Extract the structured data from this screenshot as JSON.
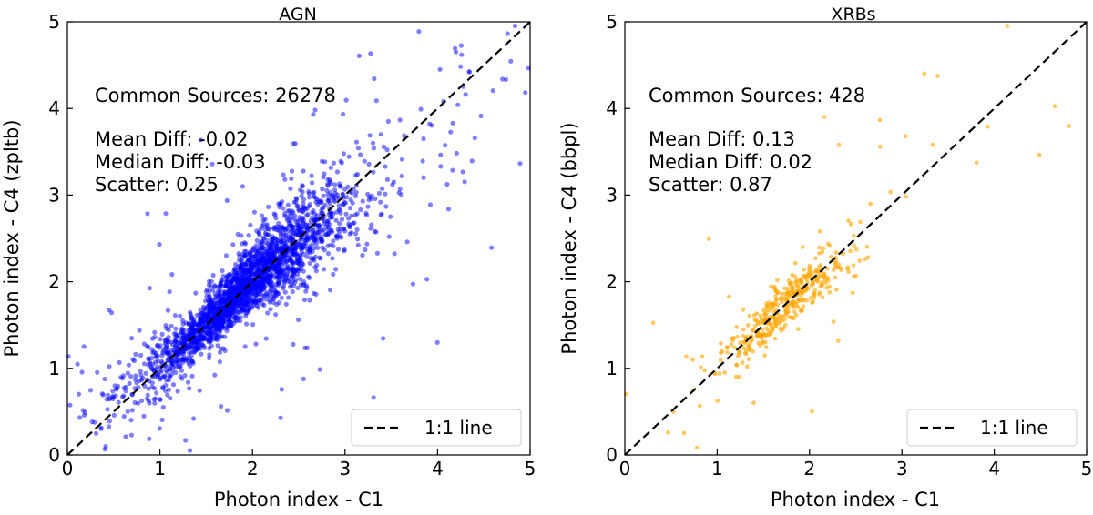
{
  "chart_data": [
    {
      "type": "scatter",
      "title": "AGN",
      "xlabel": "Photon index - C1",
      "ylabel": "Photon index - C4 (zpltb)",
      "xlim": [
        0,
        5
      ],
      "ylim": [
        0,
        5
      ],
      "xticks": [
        "0",
        "1",
        "2",
        "3",
        "4",
        "5"
      ],
      "yticks": [
        "0",
        "1",
        "2",
        "3",
        "4",
        "5"
      ],
      "point_color": "#0000ff",
      "point_count_rendered": 2600,
      "seed": 7,
      "distribution": {
        "center": 1.95,
        "spread": 0.55,
        "scatter": 0.22,
        "outlier_fraction": 0.08
      },
      "annotations": {
        "common_sources": "Common Sources: 26278",
        "mean_diff": "Mean Diff: -0.02",
        "median_diff": "Median Diff: -0.03",
        "scatter": "Scatter: 0.25"
      },
      "reference_line": {
        "x": [
          0,
          5
        ],
        "y": [
          0,
          5
        ]
      },
      "legend": {
        "label": "1:1 line",
        "placement": "lower-right"
      }
    },
    {
      "type": "scatter",
      "title": "XRBs",
      "xlabel": "Photon index - C1",
      "ylabel": "Photon index - C4 (bbpl)",
      "xlim": [
        0,
        5
      ],
      "ylim": [
        0,
        5
      ],
      "xticks": [
        "0",
        "1",
        "2",
        "3",
        "4",
        "5"
      ],
      "yticks": [
        "0",
        "1",
        "2",
        "3",
        "4",
        "5"
      ],
      "point_color": "#ffa500",
      "point_count_rendered": 428,
      "seed": 13,
      "distribution": {
        "center": 1.75,
        "spread": 0.35,
        "scatter": 0.18,
        "outlier_fraction": 0.1
      },
      "annotations": {
        "common_sources": "Common Sources: 428",
        "mean_diff": "Mean Diff: 0.13",
        "median_diff": "Median Diff: 0.02",
        "scatter": "Scatter: 0.87"
      },
      "reference_line": {
        "x": [
          0,
          5
        ],
        "y": [
          0,
          5
        ]
      },
      "legend": {
        "label": "1:1 line",
        "placement": "lower-right"
      }
    }
  ]
}
